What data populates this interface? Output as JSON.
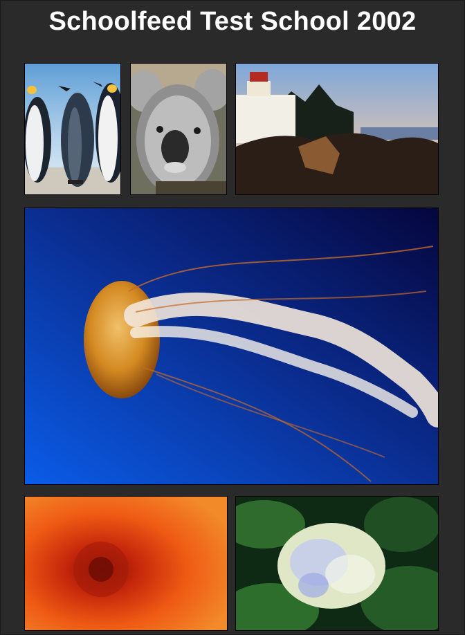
{
  "page": {
    "title": "Schoolfeed Test School 2002"
  },
  "gallery": {
    "photos": [
      {
        "subject": "penguins",
        "icon": "penguins-photo"
      },
      {
        "subject": "koala",
        "icon": "koala-photo"
      },
      {
        "subject": "lighthouse",
        "icon": "lighthouse-photo"
      },
      {
        "subject": "jellyfish",
        "icon": "jellyfish-photo"
      },
      {
        "subject": "chrysanthemum",
        "icon": "chrysanthemum-photo"
      },
      {
        "subject": "hydrangeas",
        "icon": "hydrangeas-photo"
      }
    ]
  }
}
